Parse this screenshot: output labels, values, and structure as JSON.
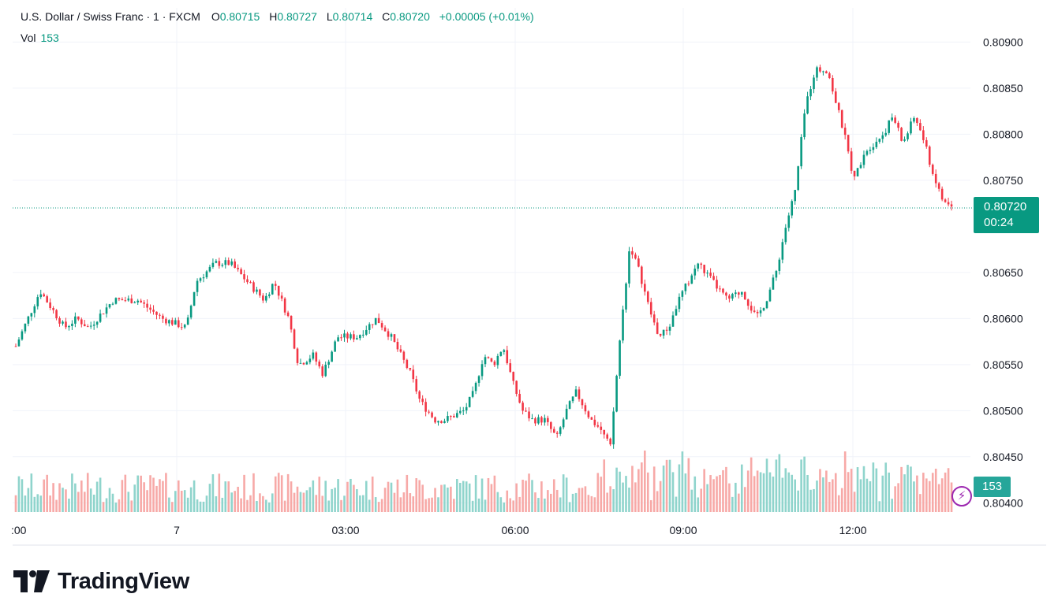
{
  "legend": {
    "symbol": "U.S. Dollar / Swiss Franc · 1 · FXCM",
    "o_label": "O",
    "o_value": "0.80715",
    "h_label": "H",
    "h_value": "0.80727",
    "l_label": "L",
    "l_value": "0.80714",
    "c_label": "C",
    "c_value": "0.80720",
    "change": "+0.00005 (+0.01%)",
    "vol_label": "Vol",
    "vol_value": "153"
  },
  "price_tag": {
    "price": "0.80720",
    "countdown": "00:24"
  },
  "volume_tag": "153",
  "brand": "TradingView",
  "colors": {
    "up": "#089981",
    "down": "#f23645",
    "vol_up": "#8fd4cc",
    "vol_down": "#f7a9a7",
    "badge": "#089981"
  },
  "icons": {
    "bolt": "lightning-icon",
    "logo": "tradingview-logo-icon"
  },
  "chart_data": {
    "type": "candlestick",
    "title": "U.S. Dollar / Swiss Franc · 1 · FXCM",
    "y_ticks": [
      "0.80900",
      "0.80850",
      "0.80800",
      "0.80750",
      "0.80650",
      "0.80600",
      "0.80550",
      "0.80500",
      "0.80450",
      "0.80400"
    ],
    "x_ticks": [
      ":00",
      "7",
      "03:00",
      "06:00",
      "09:00",
      "12:00"
    ],
    "ylim": [
      0.8039,
      0.8092
    ],
    "last_price": 0.8072,
    "grid": true,
    "price_path": [
      [
        0,
        0.8057
      ],
      [
        1.0,
        0.8063
      ],
      [
        1.5,
        0.8061
      ],
      [
        2.0,
        0.8059
      ],
      [
        2.5,
        0.806
      ],
      [
        3.0,
        0.8059
      ],
      [
        4.0,
        0.8062
      ],
      [
        5.0,
        0.8062
      ],
      [
        6.0,
        0.806
      ],
      [
        7.0,
        0.8059
      ],
      [
        7.4,
        0.8064
      ],
      [
        8.2,
        0.8066
      ],
      [
        8.8,
        0.8066
      ],
      [
        9.5,
        0.8064
      ],
      [
        10.2,
        0.8062
      ],
      [
        10.6,
        0.8064
      ],
      [
        11.2,
        0.806
      ],
      [
        11.6,
        0.8055
      ],
      [
        12.2,
        0.8056
      ],
      [
        12.6,
        0.8054
      ],
      [
        13.2,
        0.8058
      ],
      [
        14.0,
        0.8058
      ],
      [
        14.8,
        0.806
      ],
      [
        15.4,
        0.8058
      ],
      [
        16.2,
        0.8054
      ],
      [
        16.6,
        0.8051
      ],
      [
        17.2,
        0.8049
      ],
      [
        17.6,
        0.8049
      ],
      [
        18.4,
        0.805
      ],
      [
        18.8,
        0.8052
      ],
      [
        19.2,
        0.8056
      ],
      [
        19.6,
        0.8055
      ],
      [
        20.0,
        0.8057
      ],
      [
        20.4,
        0.8053
      ],
      [
        20.8,
        0.805
      ],
      [
        21.2,
        0.8049
      ],
      [
        21.7,
        0.8049
      ],
      [
        22.2,
        0.8047
      ],
      [
        22.6,
        0.805
      ],
      [
        23.0,
        0.8052
      ],
      [
        23.6,
        0.8049
      ],
      [
        24.0,
        0.8048
      ],
      [
        24.4,
        0.8046
      ],
      [
        24.8,
        0.8058
      ],
      [
        25.2,
        0.8068
      ],
      [
        25.6,
        0.8065
      ],
      [
        26.0,
        0.8061
      ],
      [
        26.4,
        0.8058
      ],
      [
        26.8,
        0.8059
      ],
      [
        27.2,
        0.8062
      ],
      [
        27.6,
        0.8064
      ],
      [
        28.0,
        0.8066
      ],
      [
        28.6,
        0.8064
      ],
      [
        29.2,
        0.8062
      ],
      [
        29.8,
        0.8063
      ],
      [
        30.4,
        0.806
      ],
      [
        30.8,
        0.8062
      ],
      [
        31.2,
        0.8065
      ],
      [
        31.6,
        0.807
      ],
      [
        32.0,
        0.8074
      ],
      [
        32.4,
        0.8083
      ],
      [
        32.8,
        0.8087
      ],
      [
        33.3,
        0.8087
      ],
      [
        33.6,
        0.8084
      ],
      [
        34.0,
        0.808
      ],
      [
        34.4,
        0.8075
      ],
      [
        34.8,
        0.8078
      ],
      [
        35.2,
        0.8079
      ],
      [
        35.6,
        0.808
      ],
      [
        36.0,
        0.8082
      ],
      [
        36.4,
        0.8079
      ],
      [
        36.9,
        0.8082
      ],
      [
        37.3,
        0.8079
      ],
      [
        37.6,
        0.8076
      ],
      [
        38.0,
        0.8073
      ],
      [
        38.4,
        0.8072
      ]
    ],
    "path_note": "x in minutes-units relative to chart span index (0..38.4 ≈ session); values in CHF per USD"
  }
}
